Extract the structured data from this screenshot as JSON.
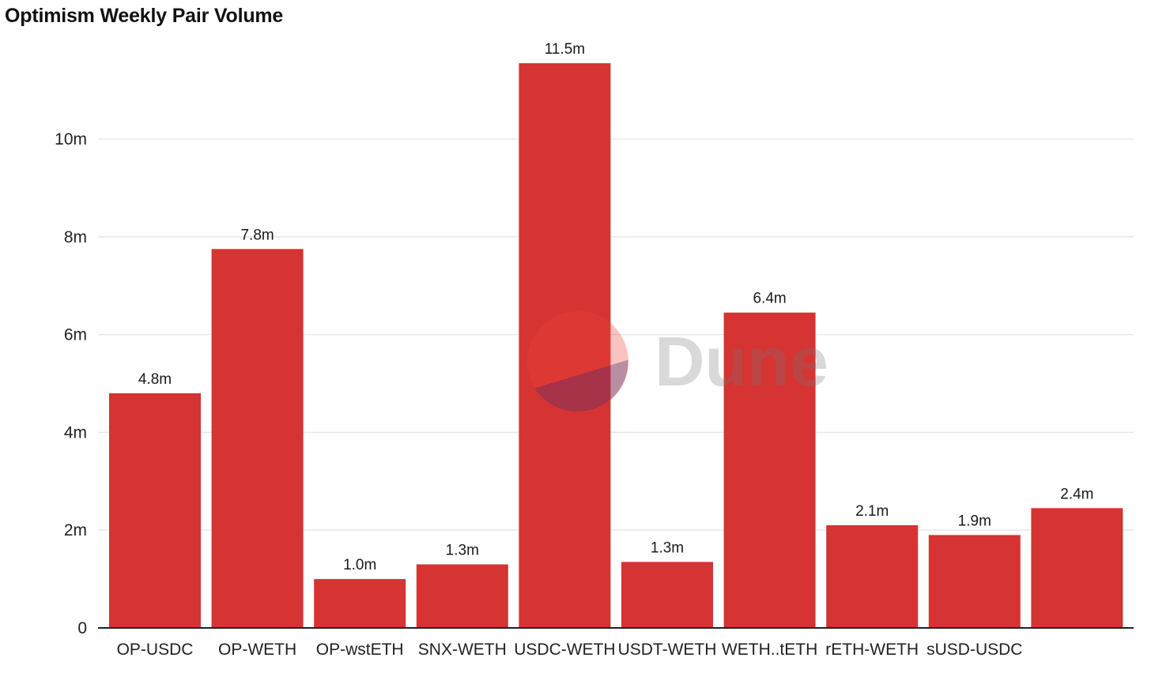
{
  "chart_data": {
    "type": "bar",
    "title": "Optimism Weekly Pair Volume",
    "categories": [
      "OP-USDC",
      "OP-WETH",
      "OP-wstETH",
      "SNX-WETH",
      "USDC-WETH",
      "USDT-WETH",
      "WETH..tETH",
      "rETH-WETH",
      "sUSD-USDC",
      ""
    ],
    "values": [
      4.8,
      7.75,
      1.0,
      1.3,
      11.55,
      1.35,
      6.45,
      2.1,
      1.9,
      2.45
    ],
    "value_labels": [
      "4.8m",
      "7.8m",
      "1.0m",
      "1.3m",
      "11.5m",
      "1.3m",
      "6.4m",
      "2.1m",
      "1.9m",
      "2.4m"
    ],
    "ylim": [
      0,
      12
    ],
    "yticks": [
      0,
      2,
      4,
      6,
      8,
      10
    ],
    "ytick_labels": [
      "0",
      "2m",
      "4m",
      "6m",
      "8m",
      "10m"
    ],
    "xlabel": "",
    "ylabel": "",
    "grid": true,
    "bar_color": "#d63333",
    "grid_color": "#e6e6e6"
  },
  "watermark": {
    "text": "Dune",
    "icon": "dune-logo-icon",
    "colors": {
      "circle": "#f0453a",
      "slice": "#3f2a6b",
      "text": "#808080"
    }
  }
}
